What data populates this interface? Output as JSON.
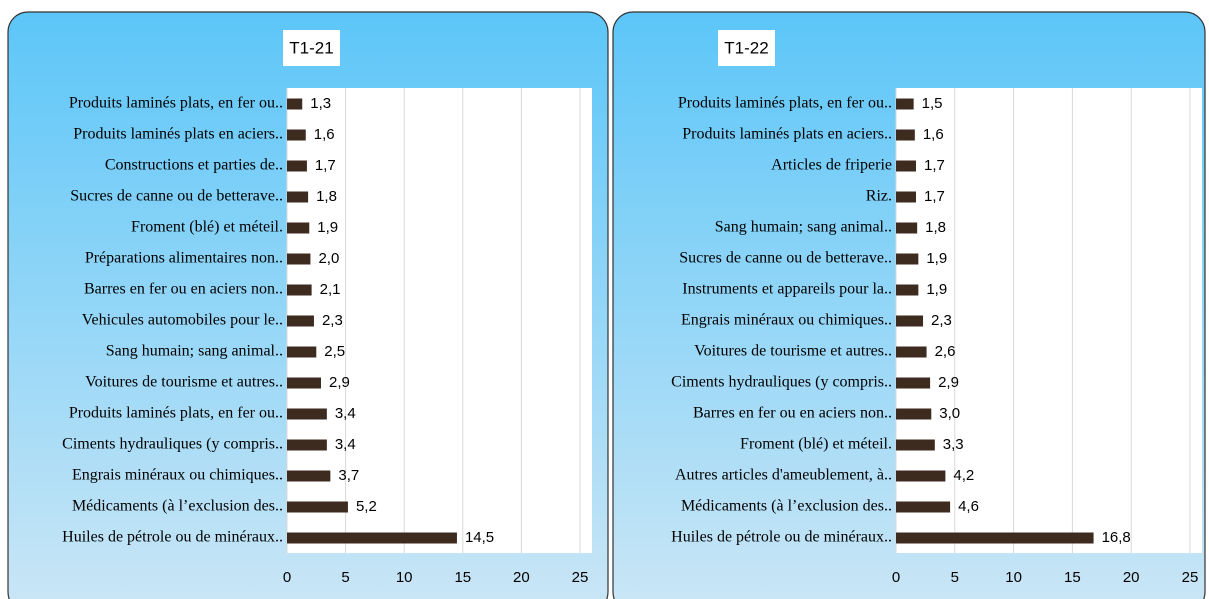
{
  "chart_data": [
    {
      "type": "bar",
      "orientation": "horizontal",
      "title": "T1-21",
      "categories": [
        "Produits laminés plats, en fer ou..",
        "Produits laminés plats en aciers..",
        "Constructions et parties de..",
        "Sucres de canne ou de betterave..",
        "Froment (blé) et méteil.",
        "Préparations alimentaires non..",
        "Barres en fer ou en aciers non..",
        "Vehicules automobiles pour le..",
        "Sang humain; sang animal..",
        "Voitures de tourisme et autres..",
        "Produits laminés plats, en fer ou..",
        "Ciments hydrauliques (y compris..",
        "Engrais minéraux ou chimiques..",
        "Médicaments (à l’exclusion des..",
        "Huiles de pétrole ou de minéraux.."
      ],
      "values": [
        1.3,
        1.6,
        1.7,
        1.8,
        1.9,
        2.0,
        2.1,
        2.3,
        2.5,
        2.9,
        3.4,
        3.4,
        3.7,
        5.2,
        14.5
      ],
      "value_labels": [
        "1,3",
        "1,6",
        "1,7",
        "1,8",
        "1,9",
        "2,0",
        "2,1",
        "2,3",
        "2,5",
        "2,9",
        "3,4",
        "3,4",
        "3,7",
        "5,2",
        "14,5"
      ],
      "color": "#3d2b20",
      "xlim": [
        0,
        25
      ],
      "xticks": [
        0,
        5,
        10,
        15,
        20,
        25
      ],
      "grid": true
    },
    {
      "type": "bar",
      "orientation": "horizontal",
      "title": "T1-22",
      "categories": [
        "Produits laminés plats, en fer ou..",
        "Produits laminés plats en aciers..",
        "Articles de friperie",
        "Riz.",
        "Sang humain; sang animal..",
        "Sucres de canne ou de betterave..",
        "Instruments et appareils pour la..",
        "Engrais minéraux ou chimiques..",
        "Voitures de tourisme et autres..",
        "Ciments hydrauliques (y compris..",
        "Barres en fer ou en aciers non..",
        "Froment (blé) et méteil.",
        "Autres articles d'ameublement, à..",
        "Médicaments (à l’exclusion des..",
        "Huiles de pétrole ou de minéraux.."
      ],
      "values": [
        1.5,
        1.6,
        1.7,
        1.7,
        1.8,
        1.9,
        1.9,
        2.3,
        2.6,
        2.9,
        3.0,
        3.3,
        4.2,
        4.6,
        16.8
      ],
      "value_labels": [
        "1,5",
        "1,6",
        "1,7",
        "1,7",
        "1,8",
        "1,9",
        "1,9",
        "2,3",
        "2,6",
        "2,9",
        "3,0",
        "3,3",
        "4,2",
        "4,6",
        "16,8"
      ],
      "color": "#3d2b20",
      "xlim": [
        0,
        25
      ],
      "xticks": [
        0,
        5,
        10,
        15,
        20,
        25
      ],
      "grid": true
    }
  ]
}
